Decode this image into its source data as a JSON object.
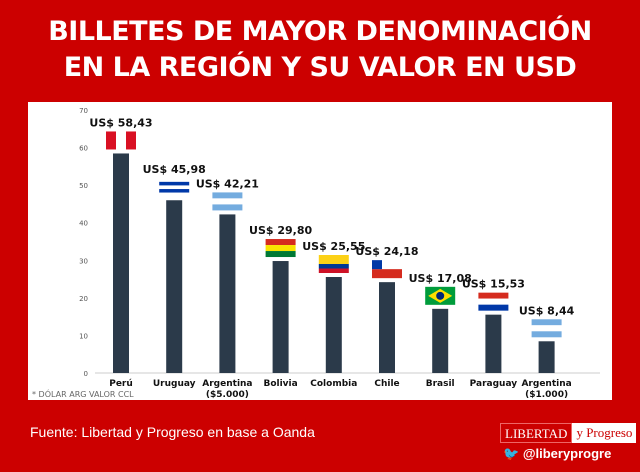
{
  "title_line1": "BILLETES DE MAYOR DENOMINACIÓN",
  "title_line2": "EN LA REGIÓN Y SU VALOR EN USD",
  "footnote": "* DÓLAR ARG VALOR CCL",
  "source": "Fuente: Libertad y Progreso en base a Oanda",
  "logo": {
    "part1": "LIBERTAD",
    "part2": "y Progreso"
  },
  "twitter": {
    "icon": "twitter-bird-icon",
    "handle": "@liberyprogre"
  },
  "colors": {
    "background": "#cc0000",
    "bar": "#2b3a4a"
  },
  "chart_data": {
    "type": "bar",
    "categories": [
      "Perú",
      "Uruguay",
      "Argentina ($5.000)",
      "Bolivia",
      "Colombia",
      "Chile",
      "Brasil",
      "Paraguay",
      "Argentina ($1.000)"
    ],
    "category_lines": [
      [
        "Perú"
      ],
      [
        "Uruguay"
      ],
      [
        "Argentina",
        "($5.000)"
      ],
      [
        "Bolivia"
      ],
      [
        "Colombia"
      ],
      [
        "Chile"
      ],
      [
        "Brasil"
      ],
      [
        "Paraguay"
      ],
      [
        "Argentina",
        "($1.000)"
      ]
    ],
    "values": [
      58.43,
      45.98,
      42.21,
      29.8,
      25.55,
      24.18,
      17.08,
      15.53,
      8.44
    ],
    "data_labels": [
      "US$ 58,43",
      "US$ 45,98",
      "US$ 42,21",
      "US$ 29,80",
      "US$ 25,55",
      "US$ 24,18",
      "US$ 17,08",
      "US$ 15,53",
      "US$ 8,44"
    ],
    "flags": [
      "peru",
      "uruguay",
      "argentina",
      "bolivia",
      "colombia",
      "chile",
      "brazil",
      "paraguay",
      "argentina"
    ],
    "ylim": [
      0,
      70
    ],
    "yticks": [
      0,
      10,
      20,
      30,
      40,
      50,
      60,
      70
    ],
    "grid": false
  }
}
